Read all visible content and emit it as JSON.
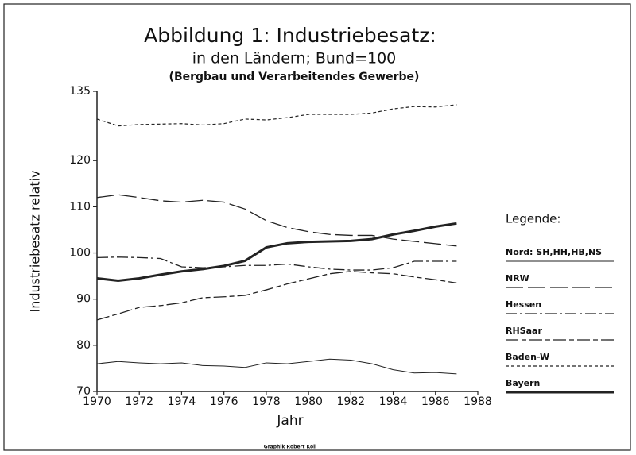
{
  "chart_data": {
    "type": "line",
    "title": "Abbildung 1: Industriebesatz:",
    "subtitle": "in den Ländern; Bund=100",
    "subtitle2": "(Bergbau und Verarbeitendes Gewerbe)",
    "xlabel": "Jahr",
    "ylabel": "Industriebesatz relativ",
    "legend_title": "Legende:",
    "footer": "Graphik Robert Koll",
    "x": [
      1970,
      1971,
      1972,
      1973,
      1974,
      1975,
      1976,
      1977,
      1978,
      1979,
      1980,
      1981,
      1982,
      1983,
      1984,
      1985,
      1986,
      1987
    ],
    "xlim": [
      1970,
      1988
    ],
    "xticks": [
      1970,
      1972,
      1974,
      1976,
      1978,
      1980,
      1982,
      1984,
      1986,
      1988
    ],
    "ylim": [
      70,
      135
    ],
    "yticks": [
      70,
      80,
      90,
      100,
      110,
      120,
      135
    ],
    "legend": "right",
    "series": [
      {
        "name": "Nord: SH,HH,HB,NS",
        "color": "#222222",
        "style": "solid",
        "values": [
          76,
          76.5,
          76.2,
          76,
          76.2,
          75.6,
          75.5,
          75.2,
          76.2,
          76,
          76.5,
          77,
          76.8,
          76,
          74.7,
          74,
          74.1,
          73.8
        ]
      },
      {
        "name": "NRW",
        "color": "#222222",
        "style": "long-dash",
        "values": [
          112,
          112.6,
          112,
          111.3,
          111,
          111.4,
          111,
          109.5,
          107,
          105.5,
          104.6,
          104,
          103.8,
          103.8,
          103,
          102.5,
          102,
          101.5
        ]
      },
      {
        "name": "Hessen",
        "color": "#222222",
        "style": "dash-dot",
        "values": [
          99,
          99.1,
          99,
          98.8,
          97,
          96.8,
          97,
          97.3,
          97.3,
          97.6,
          97,
          96.5,
          96.3,
          96.3,
          96.8,
          98.2,
          98.2,
          98.2
        ]
      },
      {
        "name": "RHSaar",
        "color": "#222222",
        "style": "dash-long-short",
        "values": [
          85.5,
          86.8,
          88.2,
          88.6,
          89.2,
          90.3,
          90.5,
          90.8,
          92,
          93.3,
          94.4,
          95.5,
          96,
          95.7,
          95.5,
          94.8,
          94.2,
          93.5
        ]
      },
      {
        "name": "Baden-W",
        "color": "#222222",
        "style": "short-dash",
        "values": [
          129,
          127.5,
          127.8,
          127.9,
          128,
          127.7,
          128,
          129,
          128.8,
          129.3,
          130,
          130,
          130,
          130.3,
          131.2,
          131.7,
          131.6,
          132.1
        ]
      },
      {
        "name": "Bayern",
        "color": "#222222",
        "style": "thick",
        "values": [
          94.5,
          94,
          94.5,
          95.3,
          96,
          96.5,
          97.2,
          98.3,
          101.2,
          102.1,
          102.4,
          102.5,
          102.6,
          103,
          104,
          104.8,
          105.7,
          106.4
        ]
      }
    ]
  }
}
